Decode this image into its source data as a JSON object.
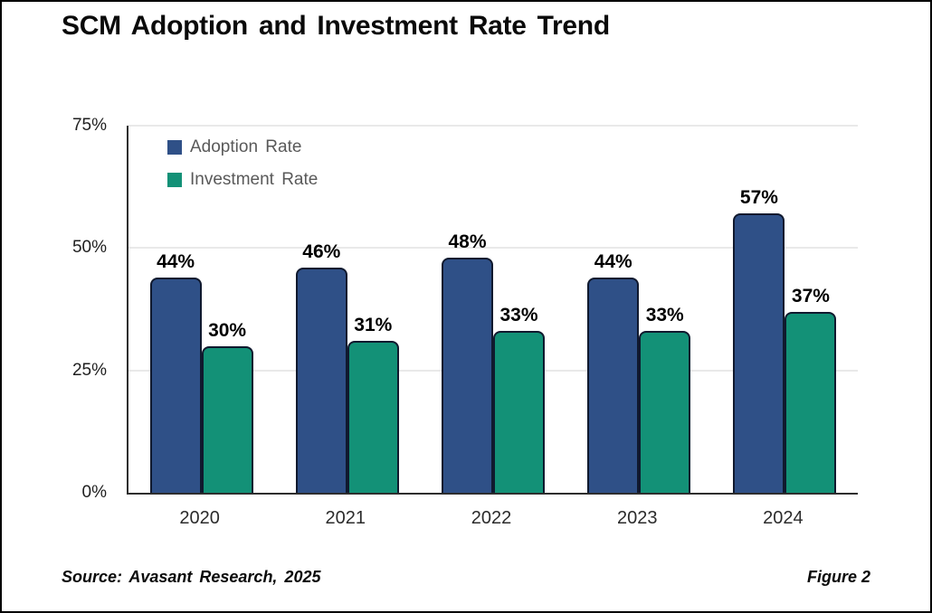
{
  "title": "SCM Adoption and Investment Rate Trend",
  "footer": {
    "source": "Source: Avasant Research, 2025",
    "figure": "Figure 2"
  },
  "colors": {
    "adoption_bar": "#2F5087",
    "investment_bar": "#139177",
    "bar_outline": "#10192e",
    "gridline": "#e9e9e9",
    "axis": "#2e2e2e",
    "legend_text": "#595959",
    "frame_border": "#000000"
  },
  "chart_data": {
    "type": "bar",
    "categories": [
      "2020",
      "2021",
      "2022",
      "2023",
      "2024"
    ],
    "series": [
      {
        "name": "Adoption Rate",
        "color": "#2F5087",
        "values": [
          44,
          46,
          48,
          44,
          57
        ]
      },
      {
        "name": "Investment Rate",
        "color": "#139177",
        "values": [
          30,
          31,
          33,
          33,
          37
        ]
      }
    ],
    "title": "SCM Adoption and Investment Rate Trend",
    "xlabel": "",
    "ylabel": "",
    "ylim": [
      0,
      75
    ],
    "yticks": [
      "0%",
      "25%",
      "50%",
      "75%"
    ],
    "value_suffix": "%",
    "grid": true,
    "legend_position": "top-left",
    "data_labels": true
  }
}
